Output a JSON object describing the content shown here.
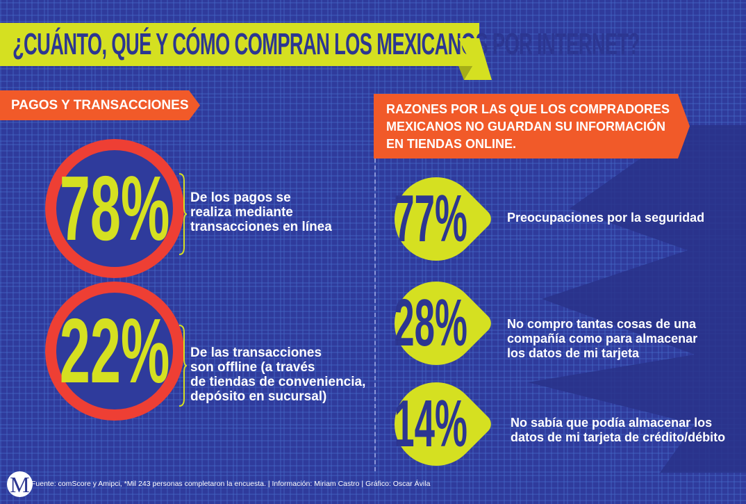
{
  "title": "¿CUÁNTO, QUÉ Y CÓMO COMPRAN LOS MEXICANOS POR INTERNET?",
  "left_section": {
    "label": "PAGOS Y TRANSACCIONES",
    "stats": [
      {
        "value": "78%",
        "lines": [
          "De los pagos se",
          "realiza mediante",
          "transacciones en línea"
        ]
      },
      {
        "value": "22%",
        "lines": [
          "De las transacciones",
          "son offline (a través",
          "de tiendas de conveniencia,",
          "depósito en sucursal)"
        ]
      }
    ]
  },
  "right_section": {
    "label_lines": [
      "RAZONES POR LAS QUE LOS COMPRADORES",
      "MEXICANOS NO GUARDAN SU INFORMACIÓN",
      "EN TIENDAS ONLINE."
    ],
    "stats": [
      {
        "value": "77%",
        "lines": [
          "Preocupaciones por la seguridad"
        ]
      },
      {
        "value": "28%",
        "lines": [
          "No compro tantas cosas de una",
          "compañía como para almacenar",
          "los datos de mi tarjeta"
        ]
      },
      {
        "value": "14%",
        "lines": [
          "No sabía que podía almacenar los",
          "datos de mi tarjeta de crédito/débito"
        ]
      }
    ]
  },
  "footer": {
    "logo": "M",
    "text": "Fuente: comScore y Amipci, *Mil 243 personas completaron la encuesta. | Información: Miriam Castro | Gráfico: Oscar Ávila"
  },
  "colors": {
    "background": "#2f3b9c",
    "accent": "#d5e021",
    "orange": "#f15a29",
    "ring": "#ee3f34"
  }
}
